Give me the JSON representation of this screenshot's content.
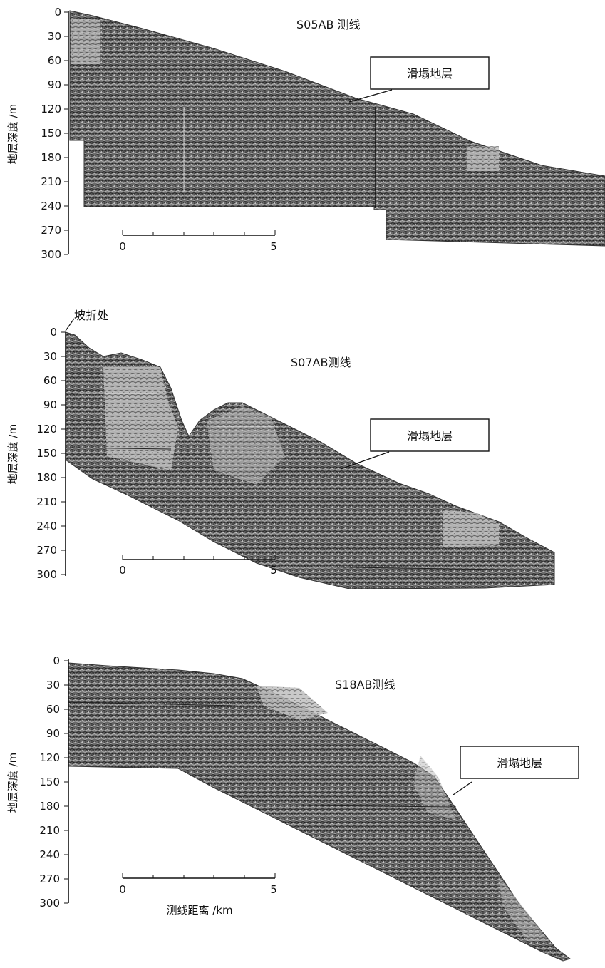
{
  "panels": [
    {
      "title": "S05AB  测线",
      "ylabel": "地层深度 /m",
      "yticks": [
        "0",
        "30",
        "60",
        "90",
        "120",
        "150",
        "180",
        "210",
        "240",
        "270",
        "300"
      ],
      "callout": "滑塌地层",
      "scale": {
        "start": "0",
        "end": "5"
      }
    },
    {
      "title": "S07AB测线",
      "ylabel": "地层深度 /m",
      "yticks": [
        "0",
        "30",
        "60",
        "90",
        "120",
        "150",
        "180",
        "210",
        "240",
        "270",
        "300"
      ],
      "callout": "滑塌地层",
      "scale": {
        "start": "0",
        "end": "5"
      },
      "annotation": "坡折处"
    },
    {
      "title": "S18AB测线",
      "ylabel": "地层深度 /m",
      "yticks": [
        "0",
        "30",
        "60",
        "90",
        "120",
        "150",
        "180",
        "210",
        "240",
        "270",
        "300"
      ],
      "callout": "滑塌地层",
      "scale": {
        "start": "0",
        "end": "5",
        "unit_label": "测线距离 /km"
      }
    }
  ],
  "colors": {
    "ink": "#111111",
    "section_fill": "#5a5a5a",
    "light_patch": "#d8d8d8",
    "background": "#ffffff"
  }
}
